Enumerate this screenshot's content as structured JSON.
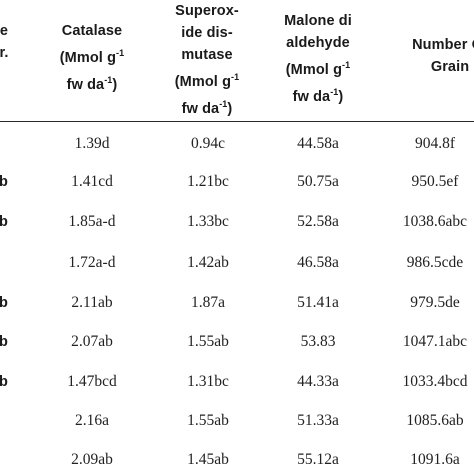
{
  "header": {
    "col0": [
      "e",
      "r."
    ],
    "col1": [
      "Catalase",
      "(Mmol g-1",
      "fw da-1)"
    ],
    "col2": [
      "Superox-",
      "ide dis-",
      "mutase",
      "(Mmol g-1",
      "fw da-1)"
    ],
    "col3": [
      "Malone di",
      "aldehyde",
      "(Mmol g-1",
      "fw da-1)"
    ],
    "col4": [
      "Number Of",
      "Grain"
    ]
  },
  "rows": [
    {
      "lead": "",
      "catalase": "1.39d",
      "sod": "0.94c",
      "mda": "44.58a",
      "grain": "904.8f"
    },
    {
      "lead": "b",
      "catalase": "1.41cd",
      "sod": "1.21bc",
      "mda": "50.75a",
      "grain": "950.5ef"
    },
    {
      "lead": "b",
      "catalase": "1.85a-d",
      "sod": "1.33bc",
      "mda": "52.58a",
      "grain": "1038.6abc"
    },
    {
      "lead": "",
      "catalase": "1.72a-d",
      "sod": "1.42ab",
      "mda": "46.58a",
      "grain": "986.5cde"
    },
    {
      "lead": "b",
      "catalase": "2.11ab",
      "sod": "1.87a",
      "mda": "51.41a",
      "grain": "979.5de"
    },
    {
      "lead": "b",
      "catalase": "2.07ab",
      "sod": "1.55ab",
      "mda": "53.83",
      "grain": "1047.1abc"
    },
    {
      "lead": "b",
      "catalase": "1.47bcd",
      "sod": "1.31bc",
      "mda": "44.33a",
      "grain": "1033.4bcd"
    },
    {
      "lead": "",
      "catalase": "2.16a",
      "sod": "1.55ab",
      "mda": "51.33a",
      "grain": "1085.6ab"
    },
    {
      "lead": "",
      "catalase": "2.09ab",
      "sod": "1.45ab",
      "mda": "55.12a",
      "grain": "1091.6a"
    }
  ]
}
